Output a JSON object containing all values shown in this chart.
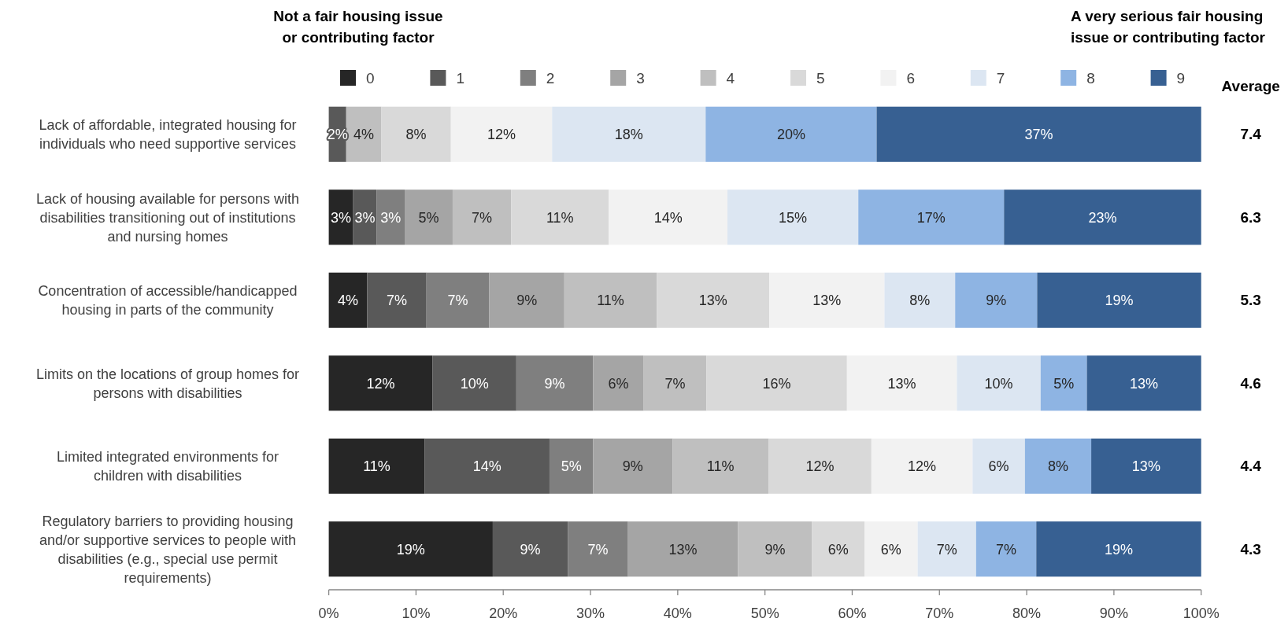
{
  "chart_data": {
    "type": "bar",
    "orientation": "horizontal",
    "stacked": true,
    "legend": "top",
    "categories": [
      "Lack of affordable, integrated housing for individuals who need supportive services",
      "Lack of housing available for persons with disabilities transitioning out of institutions and nursing homes",
      "Concentration of accessible/handicapped housing in parts of the community",
      "Limits on the locations of group homes for persons with disabilities",
      "Limited integrated environments for children with disabilities",
      "Regulatory barriers to providing housing and/or supportive services to people with disabilities (e.g., special use permit requirements)"
    ],
    "series": [
      {
        "name": "0",
        "color": "#262626",
        "values": [
          null,
          2.8,
          4.4,
          11.9,
          11,
          18.8
        ],
        "value_labels": [
          null,
          "3%",
          "4%",
          "12%",
          "11%",
          "19%"
        ]
      },
      {
        "name": "1",
        "color": "#595959",
        "values": [
          2,
          2.7,
          6.8,
          9.6,
          14.3,
          8.6
        ],
        "value_labels": [
          "2%",
          "3%",
          "7%",
          "10%",
          "14%",
          "9%"
        ]
      },
      {
        "name": "2",
        "color": "#7f7f7f",
        "values": [
          null,
          3.2,
          7.2,
          8.8,
          5,
          6.9
        ],
        "value_labels": [
          null,
          "3%",
          "7%",
          "9%",
          "5%",
          "7%"
        ]
      },
      {
        "name": "3",
        "color": "#a5a5a5",
        "values": [
          null,
          5.5,
          8.6,
          5.8,
          9.1,
          12.6
        ],
        "value_labels": [
          null,
          "5%",
          "9%",
          "6%",
          "9%",
          "13%"
        ]
      },
      {
        "name": "4",
        "color": "#bfbfbf",
        "values": [
          4,
          6.7,
          10.6,
          7.2,
          11,
          8.5
        ],
        "value_labels": [
          "4%",
          "7%",
          "11%",
          "7%",
          "11%",
          "9%"
        ]
      },
      {
        "name": "5",
        "color": "#d9d9d9",
        "values": [
          8,
          11.2,
          12.9,
          16.1,
          11.8,
          6
        ],
        "value_labels": [
          "8%",
          "11%",
          "13%",
          "16%",
          "12%",
          "6%"
        ]
      },
      {
        "name": "6",
        "color": "#f2f2f2",
        "values": [
          11.6,
          13.6,
          13.2,
          12.6,
          11.6,
          6.1
        ],
        "value_labels": [
          "12%",
          "14%",
          "13%",
          "13%",
          "12%",
          "6%"
        ]
      },
      {
        "name": "7",
        "color": "#dce6f2",
        "values": [
          17.6,
          15,
          8.1,
          9.6,
          6,
          6.7
        ],
        "value_labels": [
          "18%",
          "15%",
          "8%",
          "10%",
          "6%",
          "7%"
        ]
      },
      {
        "name": "8",
        "color": "#8eb4e3",
        "values": [
          19.6,
          16.7,
          9.4,
          5.3,
          7.6,
          6.9
        ],
        "value_labels": [
          "20%",
          "17%",
          "9%",
          "5%",
          "8%",
          "7%"
        ]
      },
      {
        "name": "9",
        "color": "#376092",
        "values": [
          37.2,
          22.6,
          18.8,
          13.1,
          12.6,
          18.9
        ],
        "value_labels": [
          "37%",
          "23%",
          "19%",
          "13%",
          "13%",
          "19%"
        ]
      }
    ],
    "xlim": [
      0,
      100
    ],
    "xticks": [
      {
        "value": 0,
        "label": "0%"
      },
      {
        "value": 10,
        "label": "10%"
      },
      {
        "value": 20,
        "label": "20%"
      },
      {
        "value": 30,
        "label": "30%"
      },
      {
        "value": 40,
        "label": "40%"
      },
      {
        "value": 50,
        "label": "50%"
      },
      {
        "value": 60,
        "label": "60%"
      },
      {
        "value": 70,
        "label": "70%"
      },
      {
        "value": 80,
        "label": "80%"
      },
      {
        "value": 90,
        "label": "90%"
      },
      {
        "value": 100,
        "label": "100%"
      }
    ],
    "annotations": [
      "Not a fair housing issue or contributing factor",
      "A very serious fair housing issue or contributing factor",
      "Average",
      "7.4",
      "6.3",
      "5.3",
      "4.6",
      "4.4",
      "4.3"
    ]
  }
}
